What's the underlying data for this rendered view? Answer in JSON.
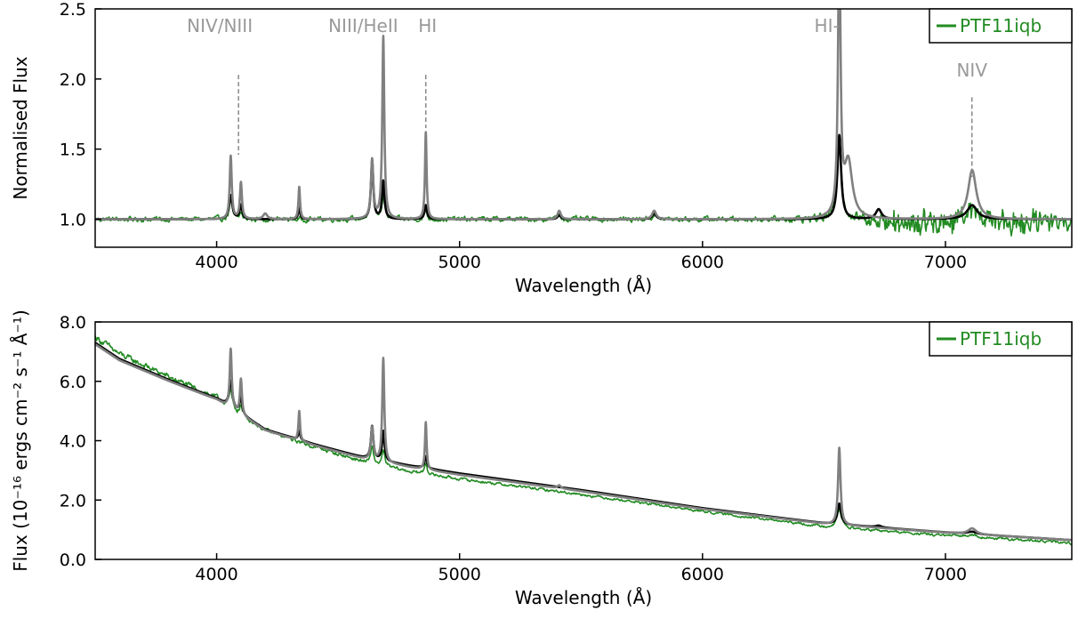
{
  "chart_data": [
    {
      "type": "line",
      "xlabel": "Wavelength (Å)",
      "ylabel": "Normalised Flux",
      "xlim": [
        3500,
        7520
      ],
      "ylim": [
        0.8,
        2.5
      ],
      "x_ticks": [
        4000,
        5000,
        6000,
        7000
      ],
      "x_tick_labels": [
        "4000",
        "5000",
        "6000",
        "7000"
      ],
      "y_ticks": [
        1.0,
        1.5,
        2.0,
        2.5
      ],
      "y_tick_labels": [
        "1.0",
        "1.5",
        "2.0",
        "2.5"
      ],
      "legend": {
        "position": "top-right",
        "entries": [
          {
            "label": "PTF11iqb",
            "color": "#228B22"
          }
        ]
      },
      "annotations": [
        {
          "text": "NIV/NIII",
          "x": 4090,
          "line_top": 2.03,
          "line_bottom": 1.46
        },
        {
          "text": "NIII/HeII",
          "x": 4640,
          "line_top": null,
          "line_bottom": null
        },
        {
          "text": "HI",
          "x": 4861,
          "line_top": 2.03,
          "line_bottom": 1.65
        },
        {
          "text": "HI-",
          "x": 6563,
          "line_top": null,
          "line_bottom": null
        },
        {
          "text": "NIV",
          "x": 7109,
          "line_top": 1.87,
          "line_bottom": 1.3
        }
      ],
      "series": [
        {
          "name": "PTF11iqb",
          "color": "#228B22",
          "shape": "noisy",
          "continuum": 1.0,
          "noise": [
            [
              3500,
              0.02
            ],
            [
              6300,
              0.02
            ],
            [
              6550,
              0.04
            ],
            [
              7100,
              0.06
            ],
            [
              7520,
              0.07
            ]
          ],
          "dips": [
            [
              6900,
              0.03,
              100,
              0.07
            ],
            [
              7280,
              0.03,
              120,
              0.05
            ]
          ],
          "lines": [
            [
              4058,
              0.13,
              7
            ],
            [
              4100,
              0.05,
              5
            ],
            [
              4640,
              0.35,
              6
            ],
            [
              4686,
              0.17,
              7
            ],
            [
              4861,
              0.06,
              6
            ],
            [
              5410,
              0.03,
              8
            ],
            [
              5801,
              0.03,
              10
            ],
            [
              6563,
              0.55,
              12
            ],
            [
              7110,
              0.1,
              25
            ]
          ]
        },
        {
          "name": "",
          "color": "#000000",
          "shape": "smooth",
          "continuum": 1.0,
          "lines": [
            [
              4058,
              0.17,
              8
            ],
            [
              4100,
              0.1,
              6
            ],
            [
              4340,
              0.08,
              5
            ],
            [
              4640,
              0.41,
              6
            ],
            [
              4686,
              0.27,
              6
            ],
            [
              4861,
              0.1,
              6
            ],
            [
              5410,
              0.03,
              8
            ],
            [
              5801,
              0.04,
              10
            ],
            [
              6563,
              0.6,
              9
            ],
            [
              6725,
              0.07,
              14
            ],
            [
              7110,
              0.1,
              25
            ]
          ]
        },
        {
          "name": "",
          "color": "#808080",
          "shape": "smooth",
          "continuum": 1.0,
          "lines": [
            [
              4058,
              0.45,
              5
            ],
            [
              4100,
              0.26,
              5
            ],
            [
              4200,
              0.04,
              10
            ],
            [
              4340,
              0.23,
              4
            ],
            [
              4640,
              0.42,
              6
            ],
            [
              4686,
              1.3,
              5
            ],
            [
              4861,
              0.62,
              4
            ],
            [
              5410,
              0.06,
              8
            ],
            [
              5801,
              0.06,
              10
            ],
            [
              6563,
              2.0,
              6
            ],
            [
              6600,
              0.4,
              20
            ],
            [
              7110,
              0.35,
              20
            ]
          ]
        }
      ]
    },
    {
      "type": "line",
      "xlabel": "Wavelength (Å)",
      "ylabel": "Flux (10⁻¹⁶ ergs cm⁻² s⁻¹ Å⁻¹)",
      "xlim": [
        3500,
        7520
      ],
      "ylim": [
        0.0,
        8.0
      ],
      "x_ticks": [
        4000,
        5000,
        6000,
        7000
      ],
      "x_tick_labels": [
        "4000",
        "5000",
        "6000",
        "7000"
      ],
      "y_ticks": [
        0.0,
        2.0,
        4.0,
        6.0,
        8.0
      ],
      "y_tick_labels": [
        "0.0",
        "2.0",
        "4.0",
        "6.0",
        "8.0"
      ],
      "legend": {
        "position": "top-right",
        "entries": [
          {
            "label": "PTF11iqb",
            "color": "#228B22"
          }
        ]
      },
      "continuum_points": [
        [
          3500,
          7.3
        ],
        [
          3600,
          6.75
        ],
        [
          3800,
          6.05
        ],
        [
          4000,
          5.4
        ],
        [
          4200,
          4.35
        ],
        [
          4400,
          3.85
        ],
        [
          4600,
          3.4
        ],
        [
          4800,
          3.1
        ],
        [
          5000,
          2.85
        ],
        [
          5500,
          2.3
        ],
        [
          6000,
          1.7
        ],
        [
          6500,
          1.2
        ],
        [
          7000,
          0.9
        ],
        [
          7520,
          0.65
        ]
      ],
      "series": [
        {
          "name": "PTF11iqb",
          "color": "#228B22",
          "shape": "noisy",
          "offset": [
            [
              3500,
              0.2
            ],
            [
              4000,
              0.05
            ],
            [
              4400,
              -0.05
            ],
            [
              4800,
              -0.15
            ],
            [
              6000,
              -0.08
            ],
            [
              6500,
              -0.1
            ],
            [
              7520,
              -0.1
            ]
          ],
          "noise": [
            [
              3500,
              0.12
            ],
            [
              4200,
              0.08
            ],
            [
              5000,
              0.05
            ],
            [
              6000,
              0.04
            ],
            [
              7520,
              0.05
            ]
          ],
          "lines": [
            [
              4058,
              0.55,
              7
            ],
            [
              4100,
              0.3,
              5
            ],
            [
              4640,
              0.6,
              6
            ],
            [
              4686,
              0.5,
              7
            ],
            [
              4861,
              0.4,
              6
            ],
            [
              6563,
              0.6,
              12
            ],
            [
              7110,
              0.1,
              25
            ]
          ]
        },
        {
          "name": "",
          "color": "#000000",
          "shape": "smooth",
          "offset": [
            [
              3500,
              0.0
            ],
            [
              4800,
              0.05
            ],
            [
              7520,
              0.0
            ]
          ],
          "lines": [
            [
              4058,
              0.9,
              8
            ],
            [
              4100,
              0.6,
              6
            ],
            [
              4340,
              0.3,
              5
            ],
            [
              4640,
              1.1,
              6
            ],
            [
              4686,
              1.0,
              6
            ],
            [
              4861,
              0.4,
              6
            ],
            [
              6563,
              0.7,
              9
            ],
            [
              6725,
              0.06,
              14
            ],
            [
              7110,
              0.08,
              25
            ]
          ]
        },
        {
          "name": "",
          "color": "#808080",
          "shape": "smooth",
          "offset": [
            [
              3500,
              -0.05
            ],
            [
              4200,
              0.0
            ],
            [
              7520,
              0.0
            ]
          ],
          "lines": [
            [
              4058,
              2.0,
              5
            ],
            [
              4100,
              1.2,
              5
            ],
            [
              4340,
              1.0,
              4
            ],
            [
              4640,
              1.1,
              6
            ],
            [
              4686,
              3.5,
              5
            ],
            [
              4861,
              1.6,
              4
            ],
            [
              5410,
              0.1,
              8
            ],
            [
              6563,
              2.6,
              6
            ],
            [
              7110,
              0.2,
              20
            ]
          ]
        }
      ]
    }
  ]
}
